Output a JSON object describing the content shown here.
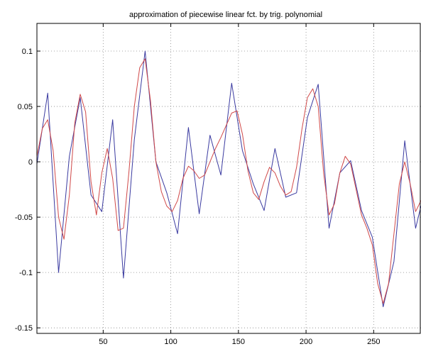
{
  "chart_data": {
    "type": "line",
    "title": "approximation of piecewise linear fct. by trig. polynomial",
    "xlabel": "",
    "ylabel": "",
    "xlim": [
      1,
      285
    ],
    "ylim": [
      -0.155,
      0.125
    ],
    "grid": true,
    "x_ticks": [
      50,
      100,
      150,
      200,
      250
    ],
    "x_tick_labels": [
      "50",
      "100",
      "150",
      "200",
      "250"
    ],
    "y_ticks": [
      0.1,
      0.05,
      0,
      -0.05,
      -0.1,
      -0.15
    ],
    "y_tick_labels": [
      "0.1",
      "0.05",
      "0",
      "-0.05",
      "-0.1",
      "-0.15"
    ],
    "series": [
      {
        "color": "#3a3aa0",
        "x": [
          1,
          9,
          17,
          25,
          33,
          41,
          49,
          57,
          65,
          73,
          81,
          89,
          97,
          105,
          113,
          121,
          129,
          137,
          145,
          153,
          161,
          169,
          177,
          185,
          193,
          201,
          209,
          217,
          225,
          233,
          241,
          249,
          257,
          265,
          273,
          281,
          285
        ],
        "y": [
          -0.002,
          0.062,
          -0.1,
          0.005,
          0.058,
          -0.03,
          -0.045,
          0.038,
          -0.105,
          0.02,
          0.1,
          0.0,
          -0.028,
          -0.065,
          0.031,
          -0.047,
          0.024,
          -0.012,
          0.071,
          0.01,
          -0.02,
          -0.044,
          0.012,
          -0.032,
          -0.028,
          0.04,
          0.07,
          -0.06,
          -0.01,
          0.001,
          -0.044,
          -0.068,
          -0.131,
          -0.09,
          0.019,
          -0.06,
          -0.04
        ]
      },
      {
        "color": "#d04848",
        "x": [
          1,
          5,
          9,
          13,
          17,
          21,
          25,
          29,
          33,
          37,
          41,
          45,
          49,
          53,
          57,
          61,
          65,
          69,
          73,
          77,
          81,
          85,
          89,
          93,
          97,
          101,
          105,
          109,
          113,
          117,
          121,
          125,
          129,
          133,
          137,
          141,
          145,
          149,
          153,
          157,
          161,
          165,
          169,
          173,
          177,
          181,
          185,
          189,
          193,
          197,
          201,
          205,
          209,
          213,
          217,
          221,
          225,
          229,
          233,
          237,
          241,
          245,
          249,
          253,
          257,
          261,
          265,
          269,
          273,
          277,
          281,
          285
        ],
        "y": [
          0.005,
          0.03,
          0.038,
          0.01,
          -0.05,
          -0.07,
          -0.03,
          0.035,
          0.061,
          0.045,
          -0.018,
          -0.048,
          -0.01,
          0.012,
          -0.015,
          -0.062,
          -0.06,
          -0.01,
          0.05,
          0.085,
          0.093,
          0.055,
          0.0,
          -0.027,
          -0.04,
          -0.045,
          -0.035,
          -0.015,
          -0.004,
          -0.008,
          -0.015,
          -0.012,
          0.0,
          0.012,
          0.022,
          0.033,
          0.044,
          0.046,
          0.025,
          -0.008,
          -0.028,
          -0.034,
          -0.018,
          -0.005,
          -0.01,
          -0.022,
          -0.03,
          -0.027,
          -0.005,
          0.03,
          0.058,
          0.066,
          0.05,
          -0.01,
          -0.048,
          -0.038,
          -0.01,
          0.005,
          -0.002,
          -0.025,
          -0.048,
          -0.06,
          -0.075,
          -0.11,
          -0.128,
          -0.11,
          -0.065,
          -0.02,
          0.0,
          -0.02,
          -0.045,
          -0.035
        ]
      }
    ]
  }
}
